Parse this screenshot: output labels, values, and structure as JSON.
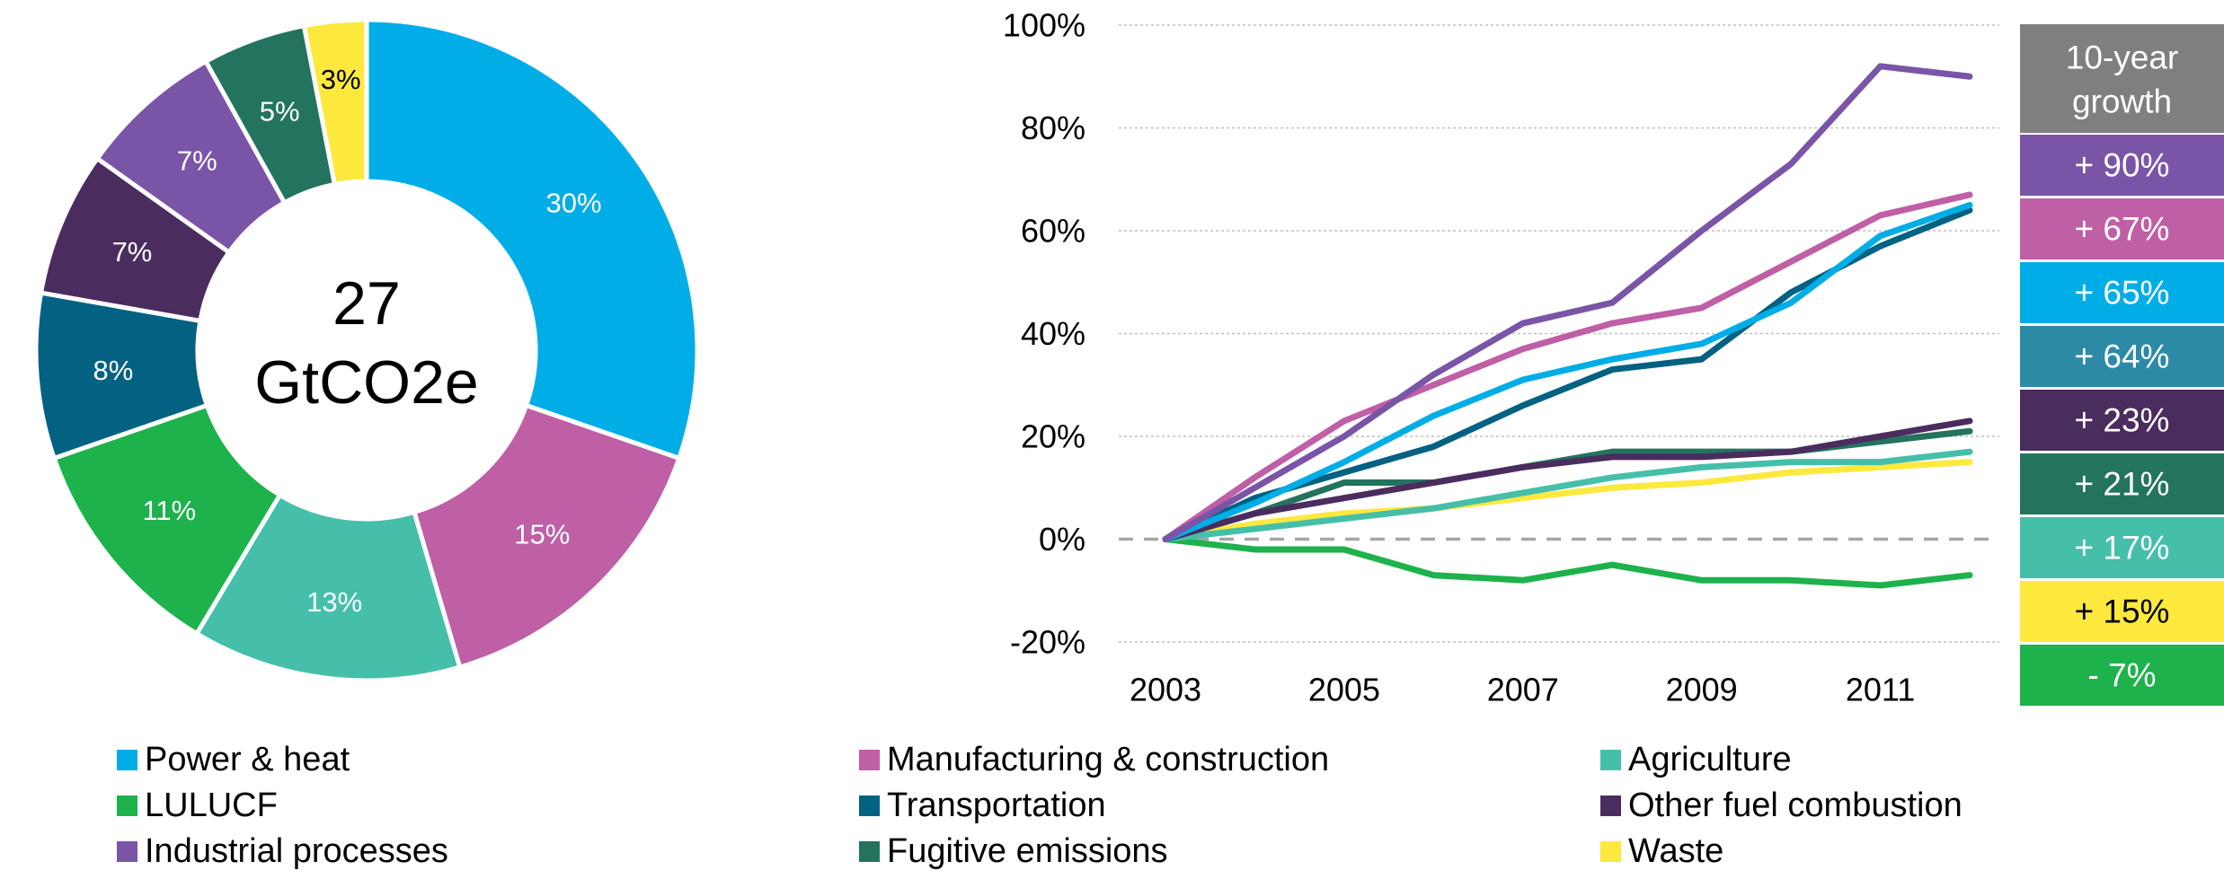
{
  "chart_data": [
    {
      "type": "pie",
      "center_label": [
        "27",
        "GtCO2e"
      ],
      "slices": [
        {
          "name": "Power & heat",
          "value": 30,
          "label": "30%",
          "color": "#00ADE6"
        },
        {
          "name": "Manufacturing & construction",
          "value": 15,
          "label": "15%",
          "color": "#BF5FA6"
        },
        {
          "name": "Agriculture",
          "value": 13,
          "label": "13%",
          "color": "#45BFAA"
        },
        {
          "name": "LULUCF",
          "value": 11,
          "label": "11%",
          "color": "#1DB24B"
        },
        {
          "name": "Transportation",
          "value": 8,
          "label": "8%",
          "color": "#036181"
        },
        {
          "name": "Other fuel combustion",
          "value": 7,
          "label": "7%",
          "color": "#4B2C5E"
        },
        {
          "name": "Industrial processes",
          "value": 7,
          "label": "7%",
          "color": "#7A55A7"
        },
        {
          "name": "Fugitive emissions",
          "value": 5,
          "label": "5%",
          "color": "#24735F"
        },
        {
          "name": "Waste",
          "value": 3,
          "label": "3%",
          "color": "#FDE93E"
        }
      ]
    },
    {
      "type": "line",
      "x": [
        2003,
        2004,
        2005,
        2006,
        2007,
        2008,
        2009,
        2010,
        2011,
        2012
      ],
      "xticks": [
        "2003",
        "2005",
        "2007",
        "2009",
        "2011"
      ],
      "xlim": [
        2003,
        2012
      ],
      "ylim": [
        -20,
        100
      ],
      "yticks": [
        {
          "value": 100,
          "label": "100%"
        },
        {
          "value": 80,
          "label": "80%"
        },
        {
          "value": 60,
          "label": "60%"
        },
        {
          "value": 40,
          "label": "40%"
        },
        {
          "value": 20,
          "label": "20%"
        },
        {
          "value": 0,
          "label": "0%"
        },
        {
          "value": -20,
          "label": "-20%"
        }
      ],
      "grid": "horizontal",
      "series": [
        {
          "name": "Industrial processes",
          "color": "#7A55A7",
          "values": [
            0,
            10,
            20,
            32,
            42,
            46,
            60,
            73,
            92,
            90
          ]
        },
        {
          "name": "Manufacturing & construction",
          "color": "#BF5FA6",
          "values": [
            0,
            12,
            23,
            30,
            37,
            42,
            45,
            54,
            63,
            67
          ]
        },
        {
          "name": "Power & heat",
          "color": "#00ADE6",
          "values": [
            0,
            7,
            15,
            24,
            31,
            35,
            38,
            46,
            59,
            65
          ]
        },
        {
          "name": "Transportation",
          "color": "#036181",
          "values": [
            0,
            8,
            13,
            18,
            26,
            33,
            35,
            48,
            57,
            64
          ]
        },
        {
          "name": "Other fuel combustion",
          "color": "#4B2C5E",
          "values": [
            0,
            5,
            8,
            11,
            14,
            16,
            16,
            17,
            20,
            23
          ]
        },
        {
          "name": "Fugitive emissions",
          "color": "#24735F",
          "values": [
            0,
            5,
            11,
            11,
            14,
            17,
            17,
            17,
            19,
            21
          ]
        },
        {
          "name": "Agriculture",
          "color": "#45BFAA",
          "values": [
            0,
            2,
            4,
            6,
            9,
            12,
            14,
            15,
            15,
            17
          ]
        },
        {
          "name": "Waste",
          "color": "#FDE93E",
          "values": [
            0,
            3,
            5,
            6,
            8,
            10,
            11,
            13,
            14,
            15
          ]
        },
        {
          "name": "LULUCF",
          "color": "#1DB24B",
          "values": [
            0,
            -2,
            -2,
            -7,
            -8,
            -5,
            -8,
            -8,
            -9,
            -7
          ]
        }
      ],
      "growth_table": {
        "header": [
          "10-year",
          "growth"
        ],
        "header_color": "#7F7F7F",
        "rows": [
          {
            "label": "+ 90%",
            "color": "#7A55A7",
            "text_color": "#ffffff"
          },
          {
            "label": "+ 67%",
            "color": "#BF5FA6",
            "text_color": "#ffffff"
          },
          {
            "label": "+ 65%",
            "color": "#00ADE6",
            "text_color": "#ffffff"
          },
          {
            "label": "+ 64%",
            "color": "#2D8AA7",
            "text_color": "#ffffff"
          },
          {
            "label": "+ 23%",
            "color": "#4B2C5E",
            "text_color": "#ffffff"
          },
          {
            "label": "+ 21%",
            "color": "#24735F",
            "text_color": "#ffffff"
          },
          {
            "label": "+ 17%",
            "color": "#45BFAA",
            "text_color": "#ffffff"
          },
          {
            "label": "+ 15%",
            "color": "#FDE93E",
            "text_color": "#000000"
          },
          {
            "label": "- 7%",
            "color": "#1DB24B",
            "text_color": "#ffffff"
          }
        ]
      }
    }
  ],
  "legend": [
    {
      "label": "Power & heat",
      "color": "#00ADE6"
    },
    {
      "label": "Manufacturing & construction",
      "color": "#BF5FA6"
    },
    {
      "label": "Agriculture",
      "color": "#45BFAA"
    },
    {
      "label": "LULUCF",
      "color": "#1DB24B"
    },
    {
      "label": "Transportation",
      "color": "#036181"
    },
    {
      "label": "Other fuel combustion",
      "color": "#4B2C5E"
    },
    {
      "label": "Industrial processes",
      "color": "#7A55A7"
    },
    {
      "label": "Fugitive emissions",
      "color": "#24735F"
    },
    {
      "label": "Waste",
      "color": "#FDE93E"
    }
  ]
}
